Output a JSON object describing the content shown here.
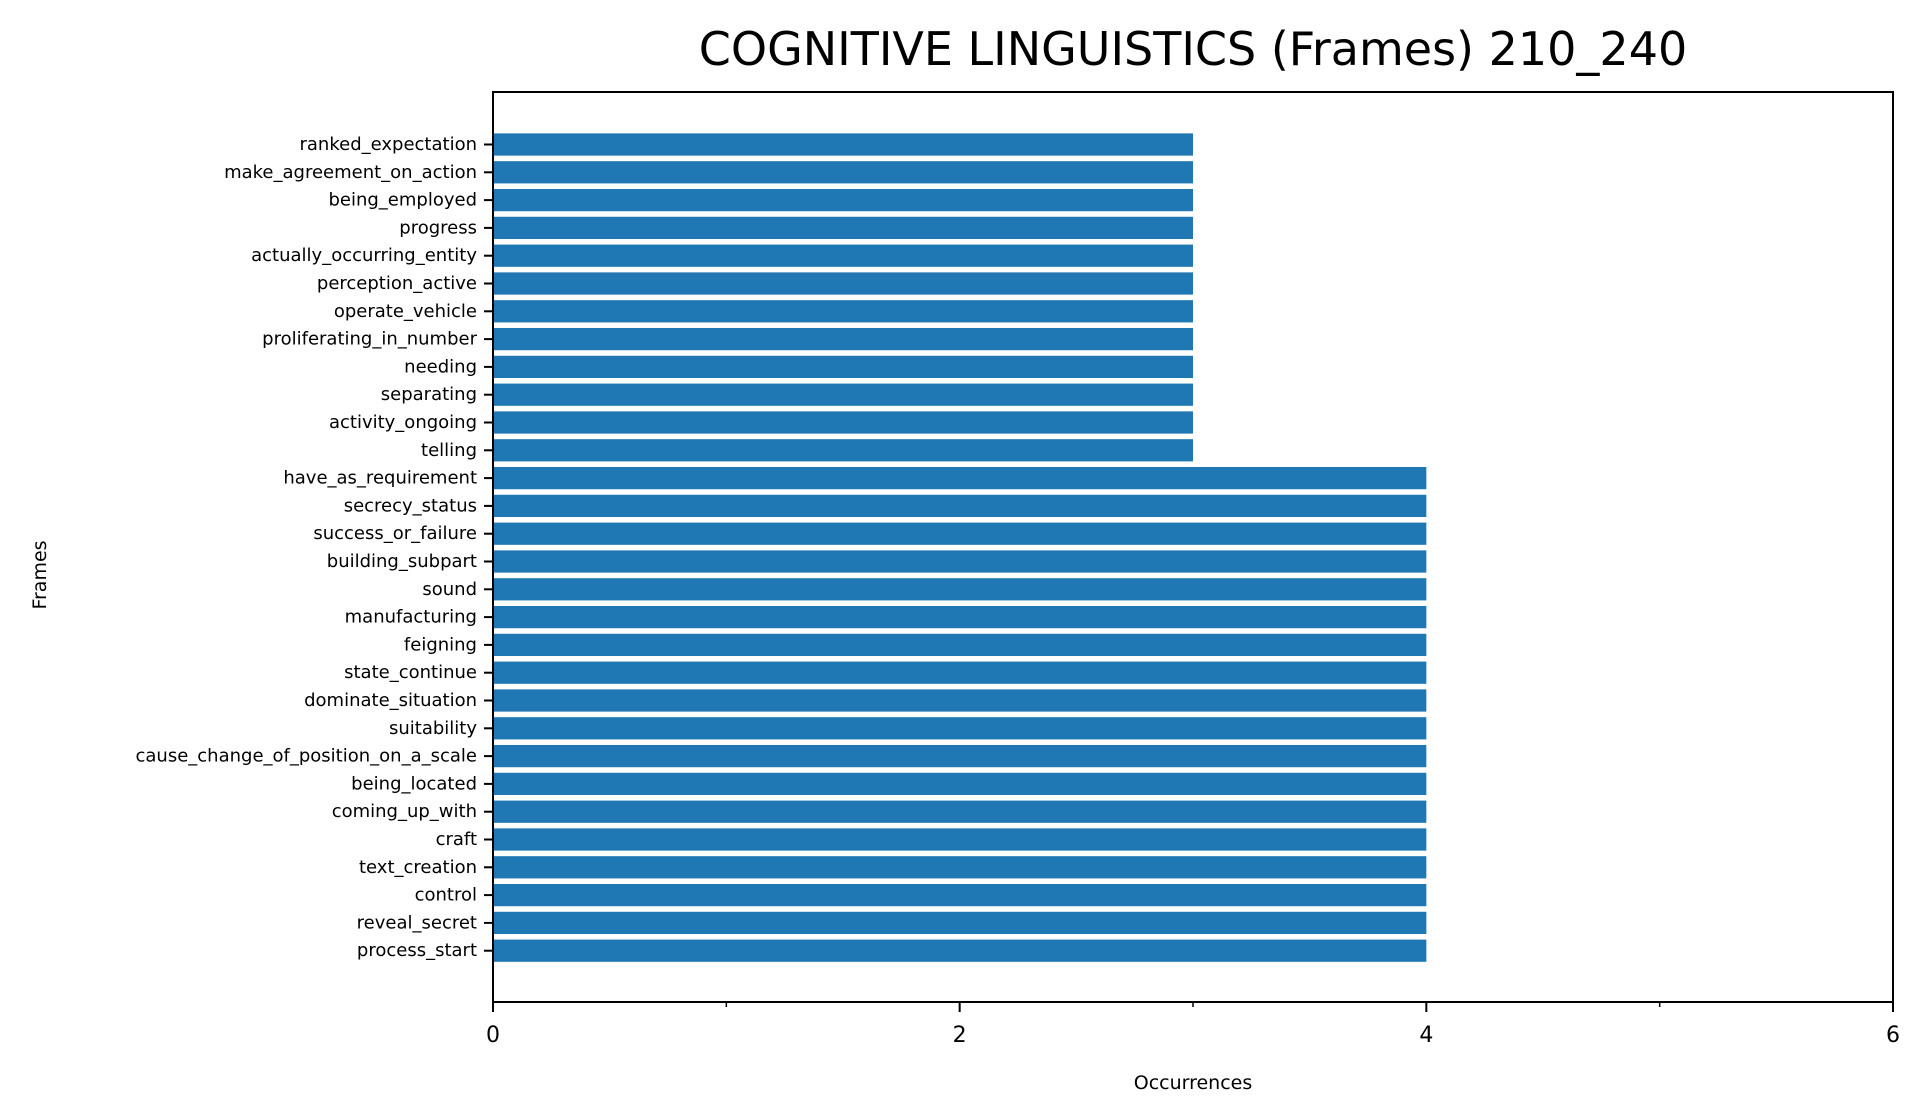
{
  "chart_data": {
    "type": "bar",
    "orientation": "horizontal",
    "title": "COGNITIVE LINGUISTICS (Frames) 210_240",
    "xlabel": "Occurrences",
    "ylabel": "Frames",
    "xlim": [
      0,
      6
    ],
    "xticks": [
      0,
      2,
      4,
      6
    ],
    "x_minor_ticks": [
      1,
      3,
      5
    ],
    "grid": false,
    "bar_color": "#1f77b4",
    "categories": [
      "ranked_expectation",
      "make_agreement_on_action",
      "being_employed",
      "progress",
      "actually_occurring_entity",
      "perception_active",
      "operate_vehicle",
      "proliferating_in_number",
      "needing",
      "separating",
      "activity_ongoing",
      "telling",
      "have_as_requirement",
      "secrecy_status",
      "success_or_failure",
      "building_subpart",
      "sound",
      "manufacturing",
      "feigning",
      "state_continue",
      "dominate_situation",
      "suitability",
      "cause_change_of_position_on_a_scale",
      "being_located",
      "coming_up_with",
      "craft",
      "text_creation",
      "control",
      "reveal_secret",
      "process_start"
    ],
    "values": [
      3,
      3,
      3,
      3,
      3,
      3,
      3,
      3,
      3,
      3,
      3,
      3,
      4,
      4,
      4,
      4,
      4,
      4,
      4,
      4,
      4,
      4,
      4,
      4,
      4,
      4,
      4,
      4,
      4,
      4
    ]
  }
}
